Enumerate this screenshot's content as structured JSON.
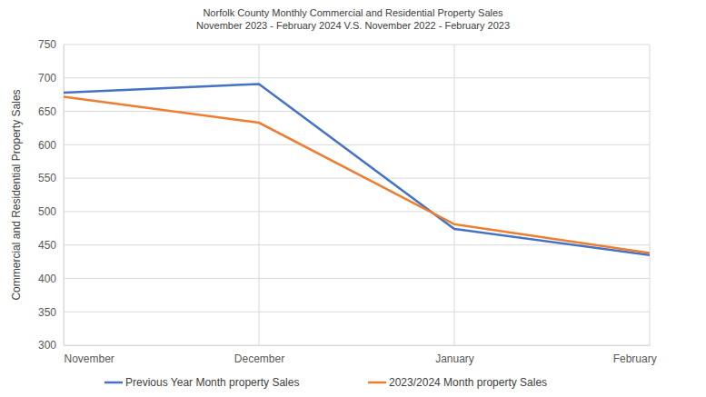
{
  "chart_data": {
    "type": "line",
    "title": "Norfolk County Monthly Commercial and Residential Property Sales",
    "subtitle": "November 2023 - February 2024 V.S.  November 2022 - February 2023",
    "y_label": "Commercial and Residential Property Sales",
    "categories": [
      "November",
      "December",
      "January",
      "February"
    ],
    "series": [
      {
        "name": "Previous Year Month property Sales",
        "color": "#4472c4",
        "values": [
          678,
          691,
          474,
          435
        ]
      },
      {
        "name": "2023/2024 Month property Sales",
        "color": "#ed7d31",
        "values": [
          672,
          633,
          481,
          438
        ]
      }
    ],
    "ylim": [
      300,
      750
    ],
    "yticks": [
      300,
      350,
      400,
      450,
      500,
      550,
      600,
      650,
      700,
      750
    ],
    "grid": true,
    "legend": "bottom"
  }
}
